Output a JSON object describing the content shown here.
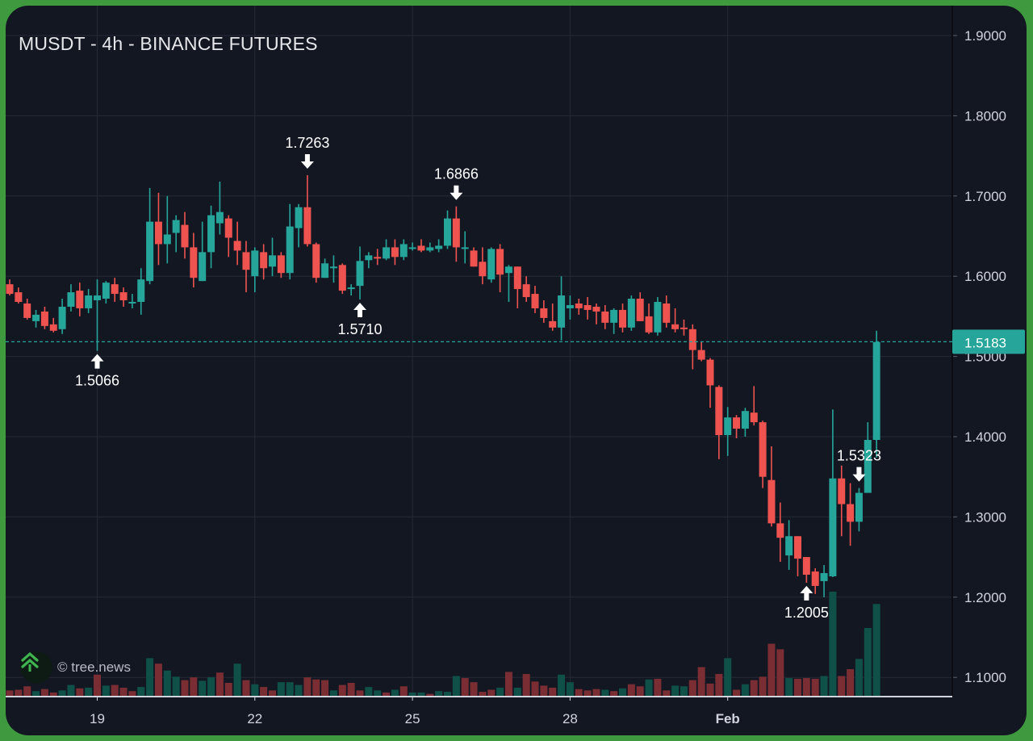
{
  "header": {
    "title": "MUSDT - 4h - BINANCE FUTURES"
  },
  "watermark": {
    "text": "© tree.news",
    "icon": "tree-logo-icon"
  },
  "colors": {
    "up": "#26a69a",
    "down": "#ef5350",
    "volume_up": "#0f5049",
    "volume_down": "#7a2e33",
    "background": "#131722",
    "grid": "#252a36",
    "frame": "#3f9a3f",
    "price_line": "#26a69a",
    "text": "#d1d4dc"
  },
  "chart_data": {
    "type": "candlestick",
    "title": "MUSDT - 4h - BINANCE FUTURES",
    "interval": "4h",
    "xlabel": "",
    "ylabel": "",
    "ylim": [
      1.07,
      1.92
    ],
    "y_ticks": [
      "1.9000",
      "1.8000",
      "1.7000",
      "1.6000",
      "1.5000",
      "1.4000",
      "1.3000",
      "1.2000",
      "1.1000"
    ],
    "x_ticks": [
      {
        "label": "19",
        "index": 10
      },
      {
        "label": "22",
        "index": 28
      },
      {
        "label": "25",
        "index": 46
      },
      {
        "label": "28",
        "index": 64
      },
      {
        "label": "Feb",
        "index": 82,
        "bold": true
      }
    ],
    "grid": true,
    "current_price": "1.5183",
    "annotations": [
      {
        "label": "1.5066",
        "index": 10,
        "type": "low"
      },
      {
        "label": "1.7263",
        "index": 34,
        "type": "high"
      },
      {
        "label": "1.5710",
        "index": 40,
        "type": "low"
      },
      {
        "label": "1.6866",
        "index": 51,
        "type": "high"
      },
      {
        "label": "1.2005",
        "index": 91,
        "type": "low"
      },
      {
        "label": "1.5323",
        "index": 97,
        "type": "high"
      }
    ],
    "candles": [
      [
        1.59,
        1.596,
        1.576,
        1.578
      ],
      [
        1.58,
        1.586,
        1.566,
        1.568
      ],
      [
        1.566,
        1.572,
        1.546,
        1.548
      ],
      [
        1.544,
        1.558,
        1.536,
        1.552
      ],
      [
        1.556,
        1.562,
        1.534,
        1.538
      ],
      [
        1.54,
        1.548,
        1.53,
        1.532
      ],
      [
        1.534,
        1.572,
        1.528,
        1.562
      ],
      [
        1.562,
        1.59,
        1.556,
        1.58
      ],
      [
        1.582,
        1.592,
        1.55,
        1.56
      ],
      [
        1.56,
        1.584,
        1.554,
        1.576
      ],
      [
        1.57,
        1.596,
        1.507,
        1.576
      ],
      [
        1.572,
        1.594,
        1.566,
        1.592
      ],
      [
        1.59,
        1.598,
        1.568,
        1.578
      ],
      [
        1.58,
        1.586,
        1.562,
        1.57
      ],
      [
        1.566,
        1.578,
        1.56,
        1.568
      ],
      [
        1.568,
        1.61,
        1.552,
        1.596
      ],
      [
        1.594,
        1.71,
        1.59,
        1.668
      ],
      [
        1.668,
        1.704,
        1.614,
        1.64
      ],
      [
        1.64,
        1.7,
        1.616,
        1.652
      ],
      [
        1.654,
        1.676,
        1.63,
        1.67
      ],
      [
        1.664,
        1.68,
        1.622,
        1.636
      ],
      [
        1.636,
        1.654,
        1.586,
        1.598
      ],
      [
        1.594,
        1.668,
        1.594,
        1.63
      ],
      [
        1.63,
        1.688,
        1.61,
        1.676
      ],
      [
        1.666,
        1.718,
        1.652,
        1.68
      ],
      [
        1.672,
        1.676,
        1.624,
        1.648
      ],
      [
        1.644,
        1.668,
        1.614,
        1.632
      ],
      [
        1.63,
        1.644,
        1.58,
        1.608
      ],
      [
        1.6,
        1.636,
        1.58,
        1.632
      ],
      [
        1.63,
        1.64,
        1.596,
        1.61
      ],
      [
        1.612,
        1.648,
        1.6,
        1.626
      ],
      [
        1.626,
        1.63,
        1.598,
        1.604
      ],
      [
        1.604,
        1.69,
        1.596,
        1.662
      ],
      [
        1.66,
        1.69,
        1.636,
        1.686
      ],
      [
        1.686,
        1.726,
        1.637,
        1.64
      ],
      [
        1.64,
        1.642,
        1.592,
        1.598
      ],
      [
        1.598,
        1.622,
        1.602,
        1.616
      ],
      [
        1.612,
        1.626,
        1.592,
        1.612
      ],
      [
        1.614,
        1.616,
        1.578,
        1.582
      ],
      [
        1.586,
        1.59,
        1.576,
        1.586
      ],
      [
        1.588,
        1.637,
        1.571,
        1.619
      ],
      [
        1.62,
        1.63,
        1.61,
        1.626
      ],
      [
        1.624,
        1.634,
        1.614,
        1.622
      ],
      [
        1.622,
        1.646,
        1.62,
        1.636
      ],
      [
        1.636,
        1.646,
        1.614,
        1.624
      ],
      [
        1.624,
        1.646,
        1.62,
        1.64
      ],
      [
        1.636,
        1.642,
        1.632,
        1.636
      ],
      [
        1.638,
        1.646,
        1.63,
        1.632
      ],
      [
        1.632,
        1.642,
        1.63,
        1.636
      ],
      [
        1.634,
        1.646,
        1.63,
        1.638
      ],
      [
        1.638,
        1.682,
        1.634,
        1.672
      ],
      [
        1.672,
        1.687,
        1.618,
        1.636
      ],
      [
        1.636,
        1.656,
        1.616,
        1.636
      ],
      [
        1.632,
        1.636,
        1.616,
        1.612
      ],
      [
        1.618,
        1.636,
        1.59,
        1.6
      ],
      [
        1.596,
        1.636,
        1.592,
        1.634
      ],
      [
        1.634,
        1.64,
        1.58,
        1.602
      ],
      [
        1.604,
        1.614,
        1.568,
        1.612
      ],
      [
        1.612,
        1.612,
        1.56,
        1.584
      ],
      [
        1.59,
        1.6,
        1.568,
        1.574
      ],
      [
        1.578,
        1.588,
        1.554,
        1.56
      ],
      [
        1.56,
        1.57,
        1.542,
        1.548
      ],
      [
        1.544,
        1.566,
        1.532,
        1.536
      ],
      [
        1.536,
        1.6,
        1.52,
        1.576
      ],
      [
        1.56,
        1.576,
        1.546,
        1.564
      ],
      [
        1.566,
        1.572,
        1.552,
        1.56
      ],
      [
        1.564,
        1.574,
        1.546,
        1.558
      ],
      [
        1.562,
        1.566,
        1.54,
        1.556
      ],
      [
        1.556,
        1.564,
        1.534,
        1.542
      ],
      [
        1.542,
        1.56,
        1.528,
        1.558
      ],
      [
        1.558,
        1.566,
        1.53,
        1.536
      ],
      [
        1.536,
        1.576,
        1.532,
        1.572
      ],
      [
        1.572,
        1.58,
        1.548,
        1.544
      ],
      [
        1.55,
        1.566,
        1.528,
        1.53
      ],
      [
        1.53,
        1.574,
        1.526,
        1.568
      ],
      [
        1.566,
        1.576,
        1.536,
        1.542
      ],
      [
        1.54,
        1.56,
        1.53,
        1.534
      ],
      [
        1.536,
        1.546,
        1.526,
        1.534
      ],
      [
        1.534,
        1.54,
        1.484,
        1.508
      ],
      [
        1.508,
        1.518,
        1.494,
        1.496
      ],
      [
        1.496,
        1.498,
        1.436,
        1.464
      ],
      [
        1.462,
        1.464,
        1.372,
        1.402
      ],
      [
        1.402,
        1.437,
        1.376,
        1.424
      ],
      [
        1.424,
        1.427,
        1.398,
        1.41
      ],
      [
        1.41,
        1.436,
        1.4,
        1.432
      ],
      [
        1.43,
        1.463,
        1.414,
        1.418
      ],
      [
        1.418,
        1.42,
        1.336,
        1.35
      ],
      [
        1.346,
        1.388,
        1.288,
        1.292
      ],
      [
        1.292,
        1.318,
        1.244,
        1.274
      ],
      [
        1.252,
        1.296,
        1.234,
        1.276
      ],
      [
        1.276,
        1.276,
        1.226,
        1.248
      ],
      [
        1.25,
        1.24,
        1.218,
        1.228
      ],
      [
        1.232,
        1.236,
        1.204,
        1.214
      ],
      [
        1.22,
        1.24,
        1.2,
        1.23
      ],
      [
        1.226,
        1.434,
        1.225,
        1.348
      ],
      [
        1.348,
        1.364,
        1.276,
        1.316
      ],
      [
        1.316,
        1.342,
        1.264,
        1.294
      ],
      [
        1.294,
        1.336,
        1.282,
        1.33
      ],
      [
        1.33,
        1.418,
        1.366,
        1.396
      ],
      [
        1.396,
        1.532,
        1.374,
        1.518
      ]
    ],
    "volume": [
      [
        9,
        "d"
      ],
      [
        10,
        "d"
      ],
      [
        15,
        "d"
      ],
      [
        8,
        "u"
      ],
      [
        11,
        "d"
      ],
      [
        6,
        "d"
      ],
      [
        9,
        "u"
      ],
      [
        17,
        "u"
      ],
      [
        12,
        "d"
      ],
      [
        13,
        "u"
      ],
      [
        32,
        "d"
      ],
      [
        16,
        "u"
      ],
      [
        17,
        "d"
      ],
      [
        13,
        "d"
      ],
      [
        8,
        "d"
      ],
      [
        14,
        "u"
      ],
      [
        56,
        "u"
      ],
      [
        48,
        "d"
      ],
      [
        38,
        "u"
      ],
      [
        29,
        "u"
      ],
      [
        24,
        "d"
      ],
      [
        28,
        "d"
      ],
      [
        23,
        "u"
      ],
      [
        28,
        "u"
      ],
      [
        35,
        "d"
      ],
      [
        20,
        "d"
      ],
      [
        48,
        "u"
      ],
      [
        24,
        "d"
      ],
      [
        18,
        "u"
      ],
      [
        14,
        "d"
      ],
      [
        9,
        "d"
      ],
      [
        21,
        "u"
      ],
      [
        21,
        "u"
      ],
      [
        17,
        "u"
      ],
      [
        28,
        "d"
      ],
      [
        25,
        "d"
      ],
      [
        24,
        "d"
      ],
      [
        9,
        "u"
      ],
      [
        17,
        "d"
      ],
      [
        20,
        "d"
      ],
      [
        9,
        "d"
      ],
      [
        14,
        "u"
      ],
      [
        9,
        "u"
      ],
      [
        6,
        "d"
      ],
      [
        10,
        "u"
      ],
      [
        15,
        "d"
      ],
      [
        6,
        "u"
      ],
      [
        6,
        "u"
      ],
      [
        4,
        "d"
      ],
      [
        8,
        "u"
      ],
      [
        7,
        "u"
      ],
      [
        30,
        "u"
      ],
      [
        27,
        "d"
      ],
      [
        21,
        "d"
      ],
      [
        7,
        "d"
      ],
      [
        10,
        "d"
      ],
      [
        13,
        "u"
      ],
      [
        36,
        "d"
      ],
      [
        13,
        "u"
      ],
      [
        33,
        "d"
      ],
      [
        22,
        "d"
      ],
      [
        16,
        "d"
      ],
      [
        13,
        "d"
      ],
      [
        32,
        "u"
      ],
      [
        21,
        "u"
      ],
      [
        11,
        "d"
      ],
      [
        9,
        "d"
      ],
      [
        11,
        "d"
      ],
      [
        10,
        "u"
      ],
      [
        8,
        "d"
      ],
      [
        12,
        "u"
      ],
      [
        18,
        "d"
      ],
      [
        15,
        "d"
      ],
      [
        25,
        "u"
      ],
      [
        26,
        "d"
      ],
      [
        9,
        "d"
      ],
      [
        16,
        "u"
      ],
      [
        15,
        "u"
      ],
      [
        24,
        "d"
      ],
      [
        43,
        "d"
      ],
      [
        19,
        "d"
      ],
      [
        33,
        "d"
      ],
      [
        56,
        "u"
      ],
      [
        10,
        "d"
      ],
      [
        18,
        "u"
      ],
      [
        24,
        "d"
      ],
      [
        29,
        "d"
      ],
      [
        77,
        "d"
      ],
      [
        69,
        "d"
      ],
      [
        27,
        "u"
      ],
      [
        26,
        "d"
      ],
      [
        27,
        "d"
      ],
      [
        26,
        "d"
      ],
      [
        30,
        "u"
      ],
      [
        153,
        "u"
      ],
      [
        30,
        "d"
      ],
      [
        40,
        "d"
      ],
      [
        55,
        "u"
      ],
      [
        100,
        "u"
      ],
      [
        135,
        "u"
      ]
    ]
  }
}
